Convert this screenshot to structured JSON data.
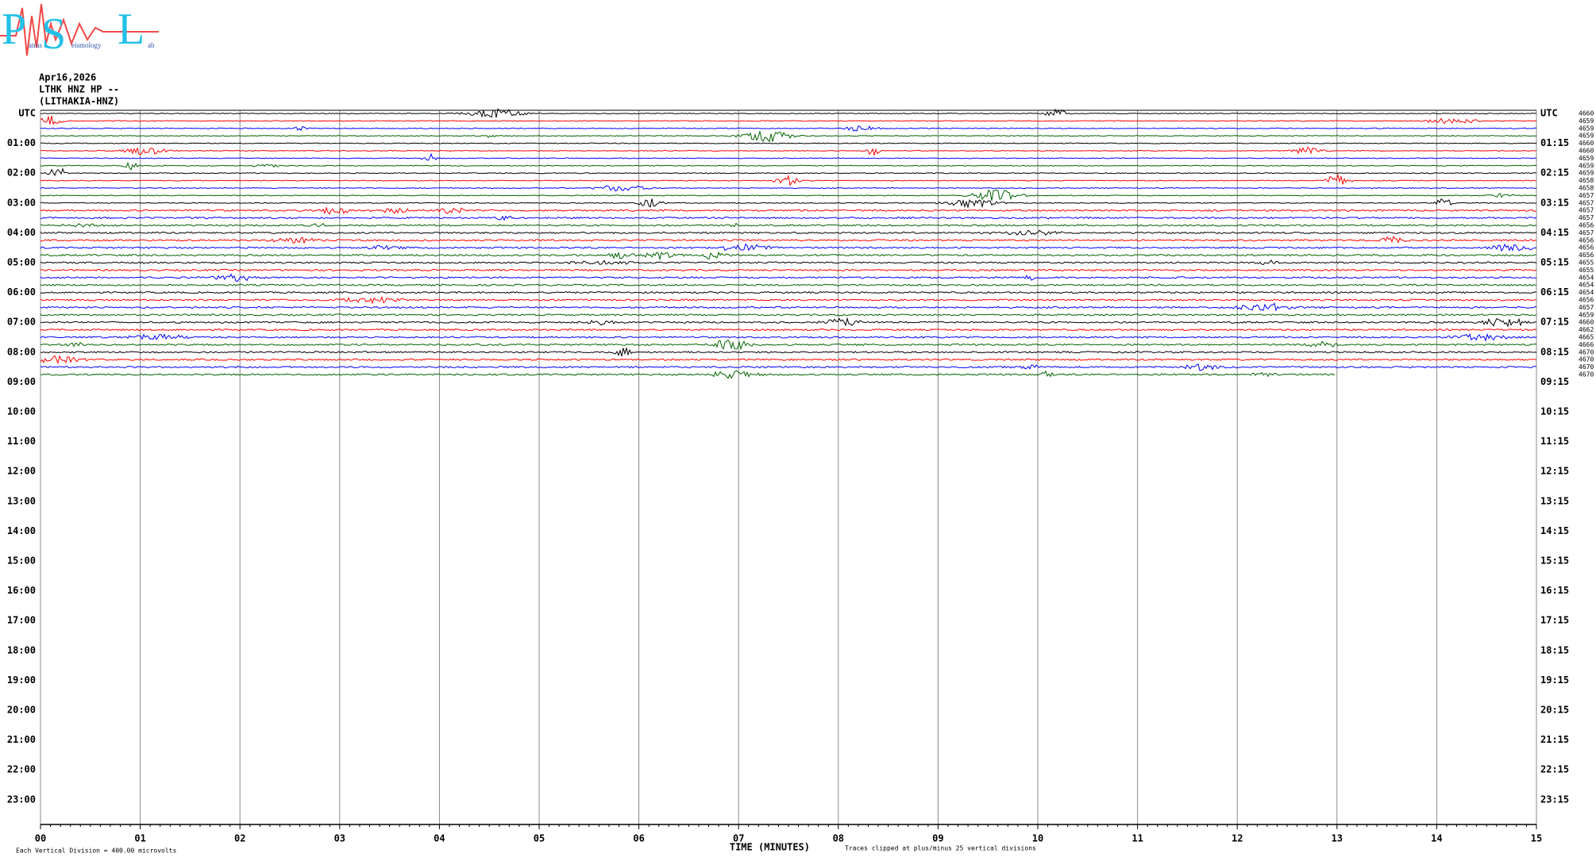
{
  "logo": {
    "letters": [
      "P",
      "S",
      "L"
    ],
    "words": [
      "atras",
      "eismology",
      "ab"
    ]
  },
  "header": {
    "date": "Apr16,2026",
    "station": "LTHK HNZ HP --",
    "site": "(LITHAKIA-HNZ)"
  },
  "left_labels": [
    "UTC",
    "01:00",
    "02:00",
    "03:00",
    "04:00",
    "05:00",
    "06:00",
    "07:00",
    "08:00",
    "09:00",
    "10:00",
    "11:00",
    "12:00",
    "13:00",
    "14:00",
    "15:00",
    "16:00",
    "17:00",
    "18:00",
    "19:00",
    "20:00",
    "21:00",
    "22:00",
    "23:00"
  ],
  "right_labels": [
    "UTC",
    "01:15",
    "02:15",
    "03:15",
    "04:15",
    "05:15",
    "06:15",
    "07:15",
    "08:15",
    "09:15",
    "10:15",
    "11:15",
    "12:15",
    "13:15",
    "14:15",
    "15:15",
    "16:15",
    "17:15",
    "18:15",
    "19:15",
    "20:15",
    "21:15",
    "22:15",
    "23:15"
  ],
  "trace_offsets": [
    "4660",
    "4659",
    "4659",
    "4659",
    "4660",
    "4660",
    "4659",
    "4659",
    "4659",
    "4658",
    "4658",
    "4657",
    "4657",
    "4657",
    "4657",
    "4656",
    "4657",
    "4656",
    "4656",
    "4656",
    "4655",
    "4655",
    "4654",
    "4654",
    "4654",
    "4656",
    "4657",
    "4659",
    "4660",
    "4662",
    "4665",
    "4666",
    "4670",
    "4670",
    "4670",
    "4670"
  ],
  "trace_colors": [
    "#000000",
    "#ff0000",
    "#0000ff",
    "#006400"
  ],
  "x_ticks": [
    "00",
    "01",
    "02",
    "03",
    "04",
    "05",
    "06",
    "07",
    "08",
    "09",
    "10",
    "11",
    "12",
    "13",
    "14",
    "15"
  ],
  "footer": {
    "scale": "Each Vertical Division =  400.00 microvolts",
    "axis_title": "TIME (MINUTES)",
    "clip": "Traces clipped at plus/minus 25 vertical divisions"
  }
}
